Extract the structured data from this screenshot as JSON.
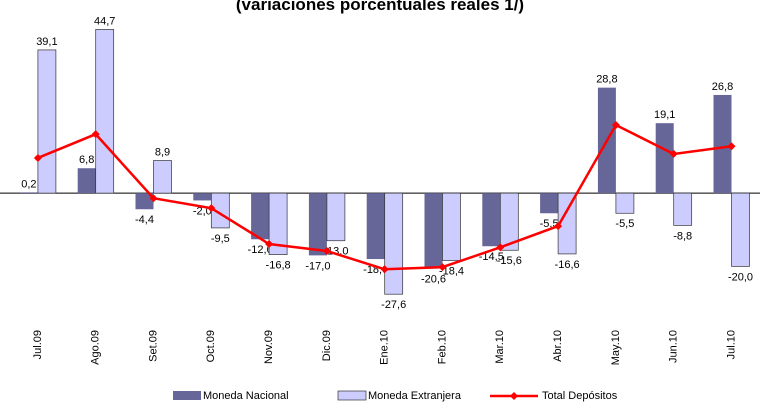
{
  "chart_data": {
    "type": "bar_line",
    "title": "(variaciones porcentuales reales 1/)",
    "categories": [
      "Jul.09",
      "Ago.09",
      "Set.09",
      "Oct.09",
      "Nov.09",
      "Dic.09",
      "Ene.10",
      "Feb.10",
      "Mar.10",
      "Abr.10",
      "May.10",
      "Jun.10",
      "Jul.10"
    ],
    "ylim": [
      -30,
      50
    ],
    "legend": "bottom",
    "series": [
      {
        "name": "Moneda Nacional",
        "type": "bar",
        "color": "#666699",
        "values": [
          0.2,
          6.8,
          -4.4,
          -2.0,
          -12.6,
          -17.0,
          -18.0,
          -20.6,
          -14.5,
          -5.5,
          28.8,
          19.1,
          26.8
        ],
        "value_labels": [
          "0,2",
          "6,8",
          "-4,4",
          "-2,0",
          "-12,6",
          "-17,0",
          "-18,0",
          "-20,6",
          "-14,5",
          "-5,5",
          "28,8",
          "19,1",
          "26,8"
        ]
      },
      {
        "name": "Moneda Extranjera",
        "type": "bar",
        "color": "#ccccff",
        "values": [
          39.1,
          44.7,
          8.9,
          -9.5,
          -16.8,
          -13.0,
          -27.6,
          -18.4,
          -15.6,
          -16.6,
          -5.5,
          -8.8,
          -20.0
        ],
        "value_labels": [
          "39,1",
          "44,7",
          "8,9",
          "-9,5",
          "-16,8",
          "-13,0",
          "-27,6",
          "-18,4",
          "-15,6",
          "-16,6",
          "-5,5",
          "-8,8",
          "-20,0"
        ]
      },
      {
        "name": "Total Depósitos",
        "type": "line",
        "color": "#ff0000",
        "values": [
          9.6,
          16.1,
          -1.4,
          -4.1,
          -13.9,
          -15.8,
          -20.8,
          -20.2,
          -14.8,
          -9.0,
          18.6,
          10.7,
          12.8
        ]
      }
    ]
  }
}
